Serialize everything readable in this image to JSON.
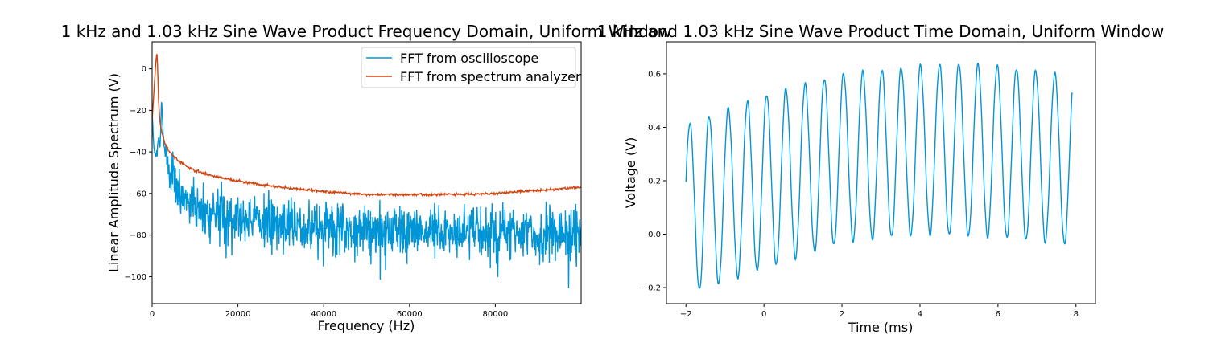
{
  "colors": {
    "oscilloscope": "#0095d6",
    "analyzer": "#d4450f",
    "axes": "#000000"
  },
  "chart_data": [
    {
      "type": "line",
      "title": "1 kHz and 1.03 kHz Sine Wave Product Frequency Domain, Uniform Window",
      "xlabel": "Frequency (Hz)",
      "ylabel": "Linear Amplitude Spectrum (V)",
      "xlim": [
        0,
        100000
      ],
      "ylim": [
        -113,
        13
      ],
      "xticks": [
        "0",
        "20000",
        "40000",
        "60000",
        "80000"
      ],
      "yticks": [
        "0",
        "−20",
        "−40",
        "−60",
        "−80",
        "−100"
      ],
      "legend_position": "top-right",
      "grid": false,
      "series": [
        {
          "name": "FFT from oscilloscope",
          "color": "#0095d6",
          "x": [
            0,
            300,
            600,
            800,
            1000,
            1200,
            1400,
            1600,
            1800,
            2000,
            2200,
            2500,
            3000,
            4000,
            5000,
            6000,
            8000,
            10000,
            14000,
            20000,
            30000,
            40000,
            50000,
            60000,
            68000,
            70000,
            80000,
            90000,
            100000
          ],
          "y": [
            -20,
            -35,
            -40,
            -42,
            -41,
            -38,
            -35,
            -34,
            -38,
            -30,
            -14,
            -30,
            -40,
            -48,
            -53,
            -58,
            -62,
            -65,
            -68,
            -71,
            -74,
            -76,
            -77,
            -78,
            -78,
            -78,
            -79,
            -80,
            -80
          ],
          "noise": 6,
          "points": 1200,
          "seed": 7
        },
        {
          "name": "FFT from spectrum analyzer",
          "color": "#d4450f",
          "x": [
            0,
            300,
            600,
            900,
            1100,
            1300,
            1500,
            1800,
            2200,
            3000,
            4000,
            6000,
            8000,
            10000,
            15000,
            20000,
            30000,
            40000,
            50000,
            60000,
            70000,
            80000,
            90000,
            100000
          ],
          "y": [
            -25,
            -15,
            -5,
            4,
            8,
            0,
            -15,
            -25,
            -30,
            -36,
            -40,
            -44,
            -47,
            -49,
            -52,
            -54,
            -57,
            -59,
            -60.5,
            -60.5,
            -60.5,
            -60,
            -58.5,
            -57
          ],
          "noise": 0.3,
          "points": 800,
          "seed": 3
        }
      ]
    },
    {
      "type": "line",
      "title": "1 kHz and 1.03 kHz Sine Wave Product Time Domain, Uniform Window",
      "xlabel": "Time (ms)",
      "ylabel": "Voltage (V)",
      "xlim": [
        -2.5,
        8.5
      ],
      "ylim": [
        -0.26,
        0.72
      ],
      "xticks": [
        "−2",
        "0",
        "2",
        "4",
        "6",
        "8"
      ],
      "yticks": [
        "−0.2",
        "0.0",
        "0.2",
        "0.4",
        "0.6"
      ],
      "grid": false,
      "series": [
        {
          "color": "#0095d6",
          "x_range": [
            -2,
            7.9
          ],
          "frequency_khz": 2.03,
          "phase_start": 0.3,
          "upper_envelope": {
            "x": [
              -2,
              0,
              2,
              4,
              5,
              6,
              8
            ],
            "y": [
              0.41,
              0.52,
              0.6,
              0.63,
              0.64,
              0.63,
              0.59
            ]
          },
          "lower_envelope": {
            "x": [
              -2,
              -1.7,
              0,
              2,
              4,
              6,
              8
            ],
            "y": [
              -0.2,
              -0.21,
              -0.13,
              -0.03,
              0.0,
              -0.01,
              -0.04
            ]
          },
          "points": 1400
        }
      ]
    }
  ]
}
